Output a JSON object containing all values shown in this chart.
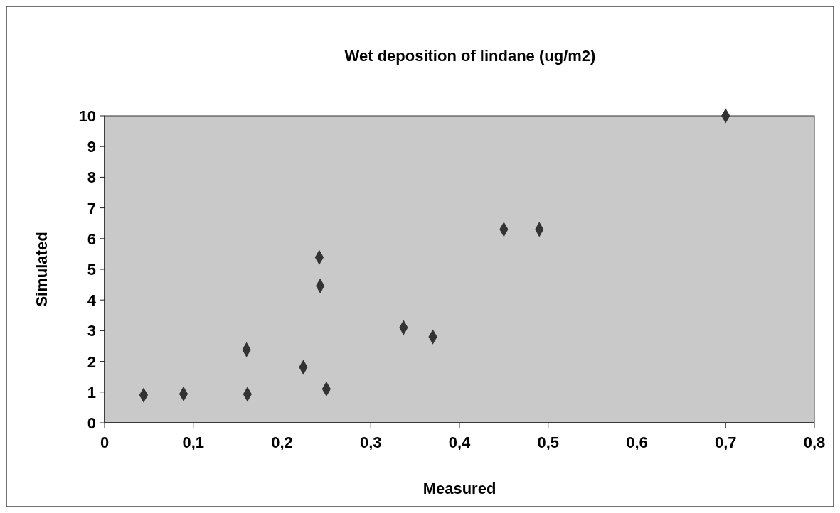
{
  "chart_data": {
    "type": "scatter",
    "title": "Wet deposition of lindane (ug/m2)",
    "xlabel": "Measured",
    "ylabel": "Simulated",
    "x": [
      0.044,
      0.089,
      0.16,
      0.161,
      0.224,
      0.242,
      0.243,
      0.25,
      0.337,
      0.37,
      0.45,
      0.49,
      0.7
    ],
    "values": [
      0.9,
      0.94,
      2.38,
      0.93,
      1.81,
      5.39,
      4.46,
      1.1,
      3.1,
      2.8,
      6.3,
      6.3,
      10
    ],
    "color": "#333333",
    "marker": "diamond",
    "grid": false,
    "xlim": [
      0,
      0.8
    ],
    "xticks": [
      0,
      {
        "value": 0.1,
        "label": "0,1"
      },
      {
        "value": 0.2,
        "label": "0,2"
      },
      {
        "value": 0.3,
        "label": "0,3"
      },
      {
        "value": 0.4,
        "label": "0,4"
      },
      {
        "value": 0.5,
        "label": "0,5"
      },
      {
        "value": 0.6,
        "label": "0,6"
      },
      {
        "value": 0.7,
        "label": "0,7"
      },
      {
        "value": 0.8,
        "label": "0,8"
      }
    ],
    "ylim": [
      0,
      10
    ],
    "yticks": [
      0,
      1,
      2,
      3,
      4,
      5,
      6,
      7,
      8,
      9,
      10
    ]
  }
}
